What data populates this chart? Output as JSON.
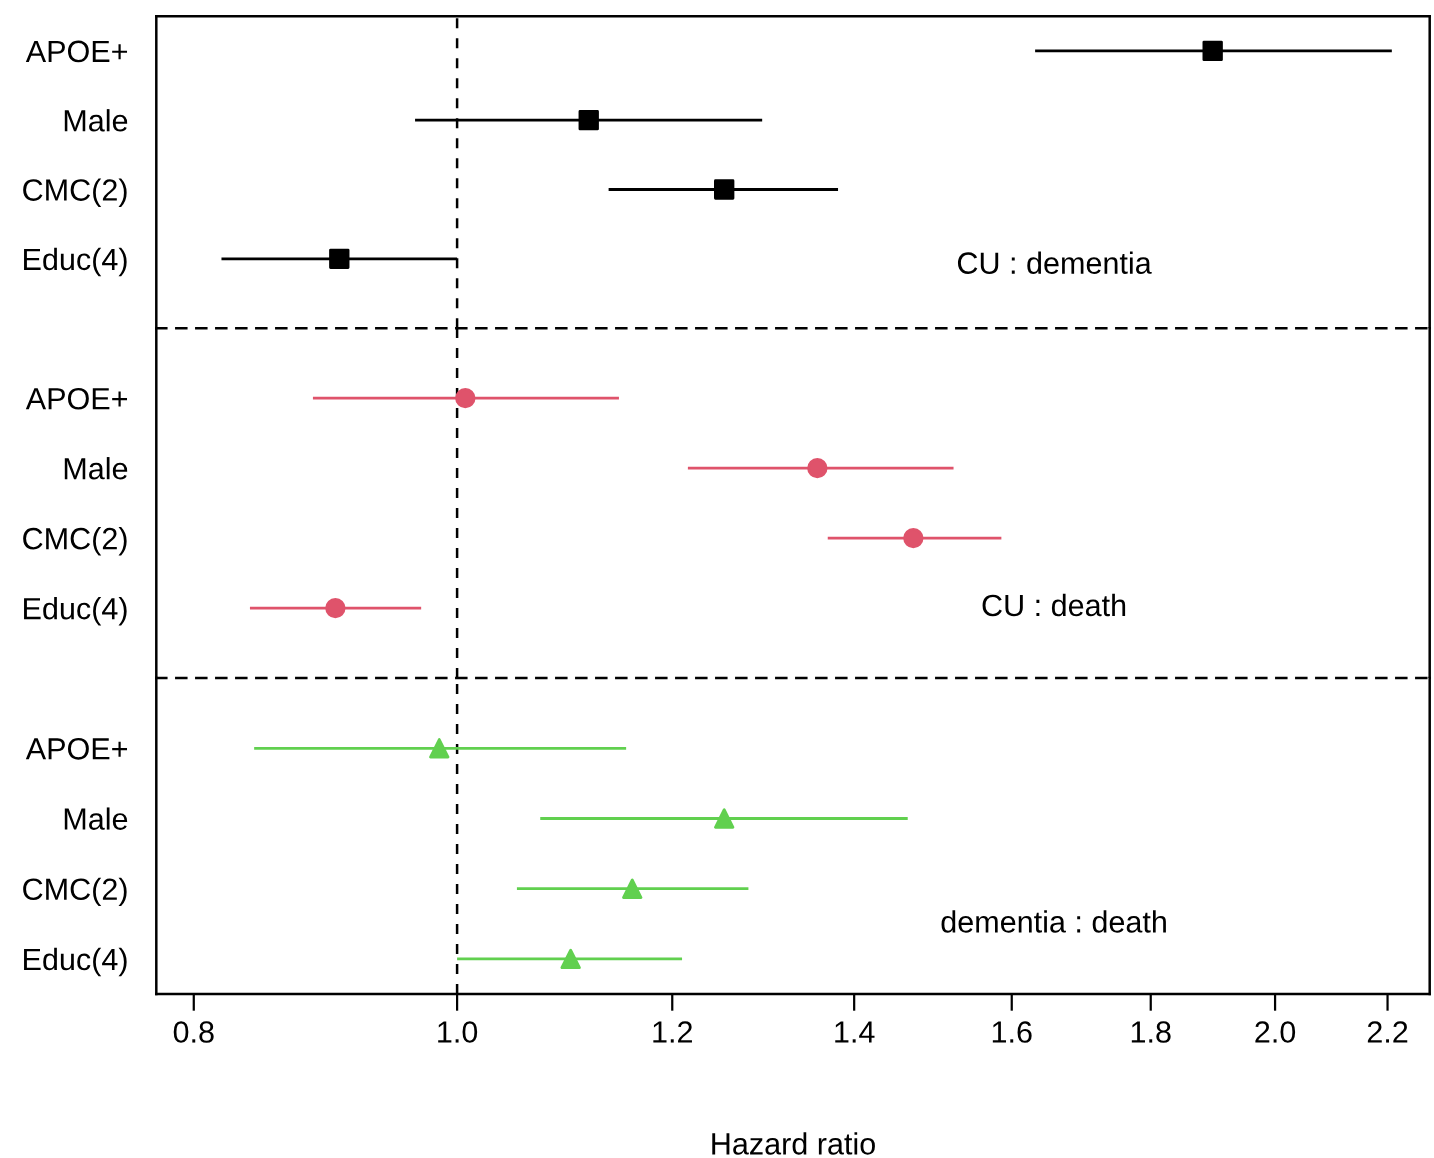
{
  "chart_data": [
    {
      "type": "scatter",
      "orientation": "horizontal",
      "categories": [
        "APOE+",
        "Male",
        "CMC(2)",
        "Educ(4)"
      ],
      "color": "#000000",
      "marker": "square",
      "values": [
        1.897,
        1.118,
        1.254,
        0.905
      ],
      "errors": [
        [
          1.632,
          2.208
        ],
        [
          0.965,
          1.295
        ],
        [
          1.137,
          1.381
        ],
        [
          0.819,
          1.0
        ]
      ],
      "annotations": [
        "CU : dementia"
      ],
      "log": "x",
      "xlim": [
        0.775,
        2.28
      ],
      "tick_labels": "y",
      "grid": false,
      "ref_lines": [
        {
          "axis": "x",
          "value": 1.0,
          "line_style": "dashed",
          "color": "#000000"
        }
      ]
    },
    {
      "type": "scatter",
      "orientation": "horizontal",
      "categories": [
        "APOE+",
        "Male",
        "CMC(2)",
        "Educ(4)"
      ],
      "color": "#df536b",
      "marker": "circle",
      "values": [
        1.007,
        1.357,
        1.472,
        0.902
      ],
      "errors": [
        [
          0.885,
          1.147
        ],
        [
          1.216,
          1.523
        ],
        [
          1.369,
          1.586
        ],
        [
          0.839,
          0.97
        ]
      ],
      "annotations": [
        "CU : death"
      ],
      "log": "x",
      "xlim": [
        0.775,
        2.28
      ],
      "tick_labels": "y",
      "grid": false,
      "ref_lines": [
        {
          "axis": "x",
          "value": 1.0,
          "line_style": "dashed",
          "color": "#000000"
        }
      ]
    },
    {
      "type": "scatter",
      "orientation": "horizontal",
      "categories": [
        "APOE+",
        "Male",
        "CMC(2)",
        "Educ(4)"
      ],
      "color": "#61d04f",
      "marker": "triangle",
      "values": [
        0.985,
        1.254,
        1.16,
        1.101
      ],
      "errors": [
        [
          0.842,
          1.154
        ],
        [
          1.073,
          1.465
        ],
        [
          1.052,
          1.28
        ],
        [
          1.0,
          1.21
        ]
      ],
      "annotations": [
        "dementia : death"
      ],
      "xlabel": "Hazard ratio",
      "log": "x",
      "xlim": [
        0.775,
        2.28
      ],
      "xticks": [
        0.8,
        {
          "value": 1,
          "label": "1.0"
        },
        1.2,
        1.4,
        1.6,
        1.8,
        {
          "value": 2,
          "label": "2.0"
        },
        2.2
      ],
      "grid": false,
      "ref_lines": [
        {
          "axis": "x",
          "value": 1.0,
          "line_style": "dashed",
          "color": "#000000"
        }
      ]
    }
  ]
}
